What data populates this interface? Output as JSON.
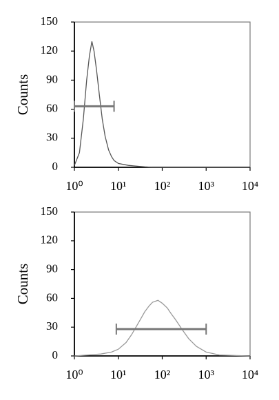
{
  "chart_data": [
    {
      "type": "line",
      "ylabel": "Counts",
      "log_x": true,
      "x": [
        1,
        1.3,
        1.6,
        1.9,
        2.2,
        2.5,
        2.8,
        3.2,
        3.7,
        4.3,
        5,
        6,
        7,
        8,
        10,
        13,
        17,
        22,
        30,
        40,
        60,
        100,
        1000,
        10000
      ],
      "values": [
        2,
        15,
        50,
        90,
        115,
        130,
        120,
        100,
        75,
        50,
        32,
        18,
        11,
        7,
        4,
        3,
        2,
        1.5,
        1,
        0.5,
        0,
        0,
        0,
        0
      ],
      "color": "#555555",
      "xlim": [
        1,
        10000
      ],
      "xticks": [
        {
          "value": 1,
          "label": "10⁰"
        },
        {
          "value": 10,
          "label": "10¹"
        },
        {
          "value": 100,
          "label": "10²"
        },
        {
          "value": 1000,
          "label": "10³"
        },
        {
          "value": 10000,
          "label": "10⁴"
        }
      ],
      "ylim": [
        0,
        150
      ],
      "yticks": [
        0,
        30,
        60,
        90,
        120,
        150
      ],
      "gate": {
        "x": [
          1,
          8
        ],
        "y": 63
      }
    },
    {
      "type": "line",
      "ylabel": "Counts",
      "log_x": true,
      "x": [
        1,
        2,
        4,
        7,
        10,
        15,
        20,
        30,
        40,
        50,
        60,
        80,
        100,
        130,
        160,
        200,
        300,
        400,
        600,
        1000,
        2000,
        10000
      ],
      "values": [
        0,
        1,
        2,
        4,
        7,
        14,
        22,
        36,
        46,
        52,
        56,
        58,
        55,
        50,
        44,
        38,
        26,
        18,
        10,
        4,
        1,
        0
      ],
      "color": "#999999",
      "xlim": [
        1,
        10000
      ],
      "xticks": [
        {
          "value": 1,
          "label": "10⁰"
        },
        {
          "value": 10,
          "label": "10¹"
        },
        {
          "value": 100,
          "label": "10²"
        },
        {
          "value": 1000,
          "label": "10³"
        },
        {
          "value": 10000,
          "label": "10⁴"
        }
      ],
      "ylim": [
        0,
        150
      ],
      "yticks": [
        0,
        30,
        60,
        90,
        120,
        150
      ],
      "gate": {
        "x": [
          9,
          1000
        ],
        "y": 28
      }
    }
  ]
}
